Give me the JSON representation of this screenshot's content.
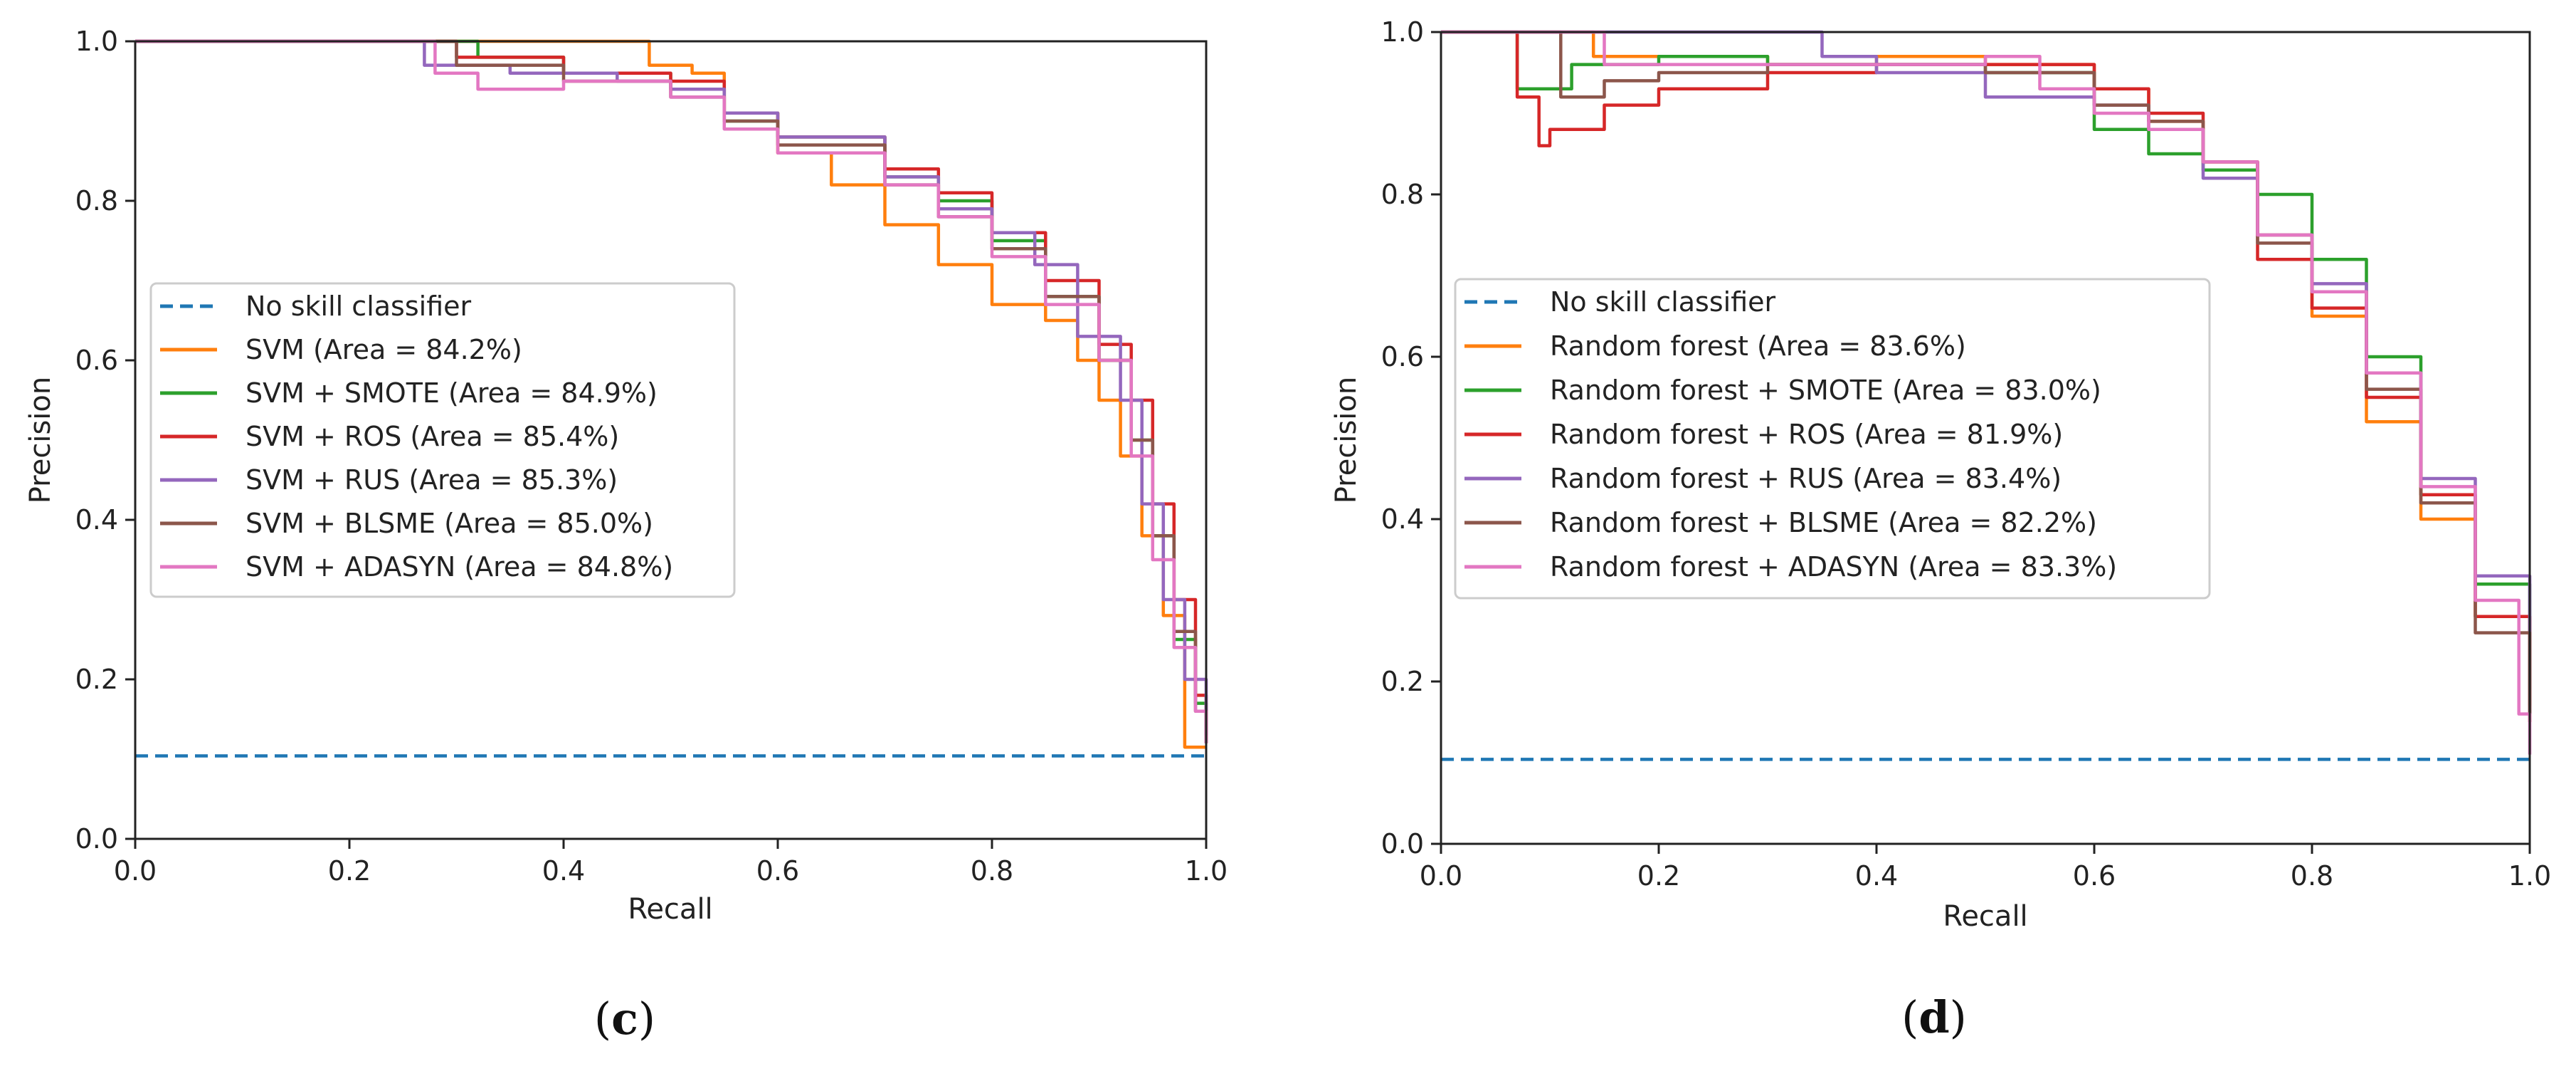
{
  "chart_data": [
    {
      "panel": "c",
      "panel_label_prefix": "(",
      "panel_label_bold": "c",
      "panel_label_suffix": ")",
      "type": "line",
      "xlabel": "Recall",
      "ylabel": "Precision",
      "xlim": [
        0,
        1
      ],
      "ylim": [
        0,
        1
      ],
      "xticks": [
        "0.0",
        "0.2",
        "0.4",
        "0.6",
        "0.8",
        "1.0"
      ],
      "yticks": [
        "0.0",
        "0.2",
        "0.4",
        "0.6",
        "0.8",
        "1.0"
      ],
      "legend_position": "center-left",
      "series": [
        {
          "name": "No skill classifier",
          "color": "#1f77b4",
          "dashed": true,
          "points": [
            [
              0,
              0.104
            ],
            [
              1,
              0.104
            ]
          ]
        },
        {
          "name": "SVM (Area = 84.2%)",
          "color": "#ff7f0e",
          "points": [
            [
              0,
              1.0
            ],
            [
              0.45,
              1.0
            ],
            [
              0.48,
              0.97
            ],
            [
              0.52,
              0.96
            ],
            [
              0.55,
              0.91
            ],
            [
              0.6,
              0.86
            ],
            [
              0.65,
              0.82
            ],
            [
              0.7,
              0.77
            ],
            [
              0.75,
              0.72
            ],
            [
              0.8,
              0.67
            ],
            [
              0.85,
              0.65
            ],
            [
              0.88,
              0.6
            ],
            [
              0.9,
              0.55
            ],
            [
              0.92,
              0.48
            ],
            [
              0.94,
              0.38
            ],
            [
              0.96,
              0.28
            ],
            [
              0.98,
              0.18
            ],
            [
              0.98,
              0.115
            ],
            [
              1.0,
              0.115
            ]
          ]
        },
        {
          "name": "SVM + SMOTE (Area = 84.9%)",
          "color": "#2ca02c",
          "points": [
            [
              0,
              1.0
            ],
            [
              0.3,
              1.0
            ],
            [
              0.32,
              0.98
            ],
            [
              0.4,
              0.96
            ],
            [
              0.5,
              0.94
            ],
            [
              0.55,
              0.9
            ],
            [
              0.6,
              0.88
            ],
            [
              0.7,
              0.83
            ],
            [
              0.75,
              0.8
            ],
            [
              0.8,
              0.75
            ],
            [
              0.85,
              0.68
            ],
            [
              0.9,
              0.6
            ],
            [
              0.93,
              0.5
            ],
            [
              0.95,
              0.38
            ],
            [
              0.97,
              0.25
            ],
            [
              0.99,
              0.17
            ],
            [
              1.0,
              0.13
            ]
          ]
        },
        {
          "name": "SVM + ROS (Area = 85.4%)",
          "color": "#d62728",
          "points": [
            [
              0,
              1.0
            ],
            [
              0.28,
              1.0
            ],
            [
              0.3,
              0.98
            ],
            [
              0.4,
              0.96
            ],
            [
              0.5,
              0.95
            ],
            [
              0.55,
              0.91
            ],
            [
              0.6,
              0.88
            ],
            [
              0.7,
              0.84
            ],
            [
              0.75,
              0.81
            ],
            [
              0.8,
              0.76
            ],
            [
              0.85,
              0.7
            ],
            [
              0.9,
              0.62
            ],
            [
              0.93,
              0.55
            ],
            [
              0.95,
              0.42
            ],
            [
              0.97,
              0.3
            ],
            [
              0.99,
              0.18
            ],
            [
              1.0,
              0.12
            ]
          ]
        },
        {
          "name": "SVM + RUS (Area = 85.3%)",
          "color": "#9467bd",
          "points": [
            [
              0,
              1.0
            ],
            [
              0.25,
              1.0
            ],
            [
              0.27,
              0.97
            ],
            [
              0.35,
              0.96
            ],
            [
              0.45,
              0.95
            ],
            [
              0.5,
              0.94
            ],
            [
              0.55,
              0.91
            ],
            [
              0.6,
              0.88
            ],
            [
              0.7,
              0.83
            ],
            [
              0.75,
              0.79
            ],
            [
              0.8,
              0.76
            ],
            [
              0.84,
              0.72
            ],
            [
              0.88,
              0.63
            ],
            [
              0.92,
              0.55
            ],
            [
              0.94,
              0.42
            ],
            [
              0.96,
              0.3
            ],
            [
              0.98,
              0.2
            ],
            [
              1.0,
              0.13
            ]
          ]
        },
        {
          "name": "SVM + BLSME (Area = 85.0%)",
          "color": "#8c564b",
          "points": [
            [
              0,
              1.0
            ],
            [
              0.27,
              1.0
            ],
            [
              0.3,
              0.97
            ],
            [
              0.4,
              0.95
            ],
            [
              0.5,
              0.93
            ],
            [
              0.55,
              0.9
            ],
            [
              0.6,
              0.87
            ],
            [
              0.7,
              0.82
            ],
            [
              0.75,
              0.78
            ],
            [
              0.8,
              0.74
            ],
            [
              0.85,
              0.68
            ],
            [
              0.9,
              0.6
            ],
            [
              0.93,
              0.5
            ],
            [
              0.95,
              0.38
            ],
            [
              0.97,
              0.26
            ],
            [
              0.99,
              0.16
            ],
            [
              1.0,
              0.12
            ]
          ]
        },
        {
          "name": "SVM + ADASYN (Area = 84.8%)",
          "color": "#e377c2",
          "points": [
            [
              0,
              1.0
            ],
            [
              0.26,
              1.0
            ],
            [
              0.28,
              0.96
            ],
            [
              0.32,
              0.94
            ],
            [
              0.4,
              0.95
            ],
            [
              0.5,
              0.93
            ],
            [
              0.55,
              0.89
            ],
            [
              0.6,
              0.86
            ],
            [
              0.7,
              0.82
            ],
            [
              0.75,
              0.78
            ],
            [
              0.8,
              0.73
            ],
            [
              0.85,
              0.67
            ],
            [
              0.9,
              0.6
            ],
            [
              0.93,
              0.48
            ],
            [
              0.95,
              0.35
            ],
            [
              0.97,
              0.24
            ],
            [
              0.99,
              0.16
            ],
            [
              1.0,
              0.12
            ]
          ]
        }
      ]
    },
    {
      "panel": "d",
      "panel_label_prefix": "(",
      "panel_label_bold": "d",
      "panel_label_suffix": ")",
      "type": "line",
      "xlabel": "Recall",
      "ylabel": "Precision",
      "xlim": [
        0,
        1
      ],
      "ylim": [
        0,
        1
      ],
      "xticks": [
        "0.0",
        "0.2",
        "0.4",
        "0.6",
        "0.8",
        "1.0"
      ],
      "yticks": [
        "0.0",
        "0.2",
        "0.4",
        "0.6",
        "0.8",
        "1.0"
      ],
      "legend_position": "center-left",
      "series": [
        {
          "name": "No skill classifier",
          "color": "#1f77b4",
          "dashed": true,
          "points": [
            [
              0,
              0.104
            ],
            [
              1,
              0.104
            ]
          ]
        },
        {
          "name": "Random forest (Area = 83.6%)",
          "color": "#ff7f0e",
          "points": [
            [
              0,
              1.0
            ],
            [
              0.12,
              1.0
            ],
            [
              0.14,
              0.97
            ],
            [
              0.2,
              0.97
            ],
            [
              0.3,
              0.96
            ],
            [
              0.4,
              0.97
            ],
            [
              0.5,
              0.96
            ],
            [
              0.6,
              0.93
            ],
            [
              0.65,
              0.89
            ],
            [
              0.7,
              0.84
            ],
            [
              0.75,
              0.75
            ],
            [
              0.8,
              0.65
            ],
            [
              0.85,
              0.52
            ],
            [
              0.9,
              0.4
            ],
            [
              0.95,
              0.28
            ],
            [
              1.0,
              0.17
            ]
          ]
        },
        {
          "name": "Random forest + SMOTE (Area = 83.0%)",
          "color": "#2ca02c",
          "points": [
            [
              0,
              1.0
            ],
            [
              0.06,
              1.0
            ],
            [
              0.07,
              0.93
            ],
            [
              0.12,
              0.96
            ],
            [
              0.2,
              0.97
            ],
            [
              0.3,
              0.96
            ],
            [
              0.4,
              0.96
            ],
            [
              0.5,
              0.95
            ],
            [
              0.6,
              0.88
            ],
            [
              0.65,
              0.85
            ],
            [
              0.7,
              0.83
            ],
            [
              0.75,
              0.8
            ],
            [
              0.8,
              0.72
            ],
            [
              0.85,
              0.6
            ],
            [
              0.9,
              0.43
            ],
            [
              0.95,
              0.32
            ],
            [
              1.0,
              0.19
            ]
          ]
        },
        {
          "name": "Random forest + ROS (Area = 81.9%)",
          "color": "#d62728",
          "points": [
            [
              0,
              1.0
            ],
            [
              0.05,
              1.0
            ],
            [
              0.07,
              0.92
            ],
            [
              0.09,
              0.86
            ],
            [
              0.1,
              0.88
            ],
            [
              0.15,
              0.91
            ],
            [
              0.2,
              0.93
            ],
            [
              0.3,
              0.95
            ],
            [
              0.4,
              0.96
            ],
            [
              0.5,
              0.96
            ],
            [
              0.6,
              0.93
            ],
            [
              0.65,
              0.9
            ],
            [
              0.7,
              0.84
            ],
            [
              0.75,
              0.72
            ],
            [
              0.8,
              0.66
            ],
            [
              0.85,
              0.55
            ],
            [
              0.9,
              0.43
            ],
            [
              0.95,
              0.28
            ],
            [
              1.0,
              0.15
            ]
          ]
        },
        {
          "name": "Random forest + RUS (Area = 83.4%)",
          "color": "#9467bd",
          "points": [
            [
              0,
              1.0
            ],
            [
              0.3,
              1.0
            ],
            [
              0.35,
              0.97
            ],
            [
              0.4,
              0.95
            ],
            [
              0.5,
              0.92
            ],
            [
              0.6,
              0.91
            ],
            [
              0.65,
              0.88
            ],
            [
              0.7,
              0.82
            ],
            [
              0.75,
              0.75
            ],
            [
              0.8,
              0.69
            ],
            [
              0.85,
              0.58
            ],
            [
              0.9,
              0.45
            ],
            [
              0.95,
              0.33
            ],
            [
              1.0,
              0.16
            ]
          ]
        },
        {
          "name": "Random forest + BLSME (Area = 82.2%)",
          "color": "#8c564b",
          "points": [
            [
              0,
              1.0
            ],
            [
              0.1,
              1.0
            ],
            [
              0.11,
              0.92
            ],
            [
              0.15,
              0.94
            ],
            [
              0.2,
              0.95
            ],
            [
              0.3,
              0.96
            ],
            [
              0.4,
              0.96
            ],
            [
              0.5,
              0.95
            ],
            [
              0.6,
              0.91
            ],
            [
              0.65,
              0.89
            ],
            [
              0.7,
              0.84
            ],
            [
              0.75,
              0.74
            ],
            [
              0.8,
              0.68
            ],
            [
              0.85,
              0.56
            ],
            [
              0.9,
              0.42
            ],
            [
              0.95,
              0.26
            ],
            [
              1.0,
              0.16
            ]
          ]
        },
        {
          "name": "Random forest + ADASYN (Area = 83.3%)",
          "color": "#e377c2",
          "points": [
            [
              0,
              1.0
            ],
            [
              0.13,
              1.0
            ],
            [
              0.15,
              0.96
            ],
            [
              0.2,
              0.96
            ],
            [
              0.3,
              0.96
            ],
            [
              0.4,
              0.96
            ],
            [
              0.5,
              0.97
            ],
            [
              0.55,
              0.93
            ],
            [
              0.6,
              0.9
            ],
            [
              0.65,
              0.88
            ],
            [
              0.7,
              0.84
            ],
            [
              0.75,
              0.75
            ],
            [
              0.8,
              0.68
            ],
            [
              0.85,
              0.58
            ],
            [
              0.9,
              0.44
            ],
            [
              0.95,
              0.3
            ],
            [
              0.99,
              0.16
            ],
            [
              1.0,
              0.11
            ]
          ]
        }
      ]
    }
  ]
}
